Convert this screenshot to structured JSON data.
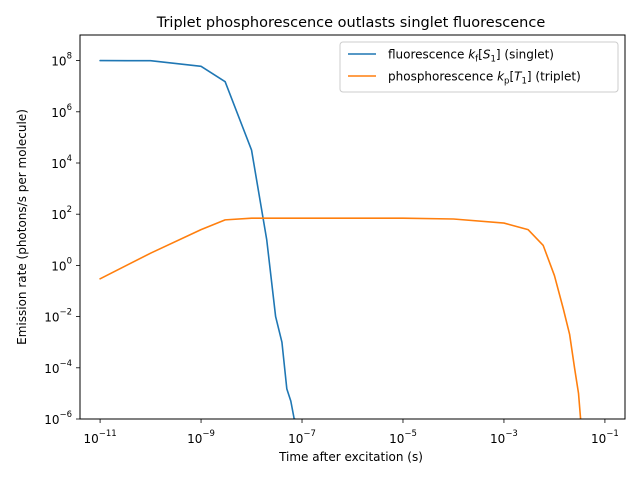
{
  "chart_data": {
    "type": "line",
    "title": "Triplet phosphorescence outlasts singlet fluorescence",
    "xlabel": "Time after excitation (s)",
    "ylabel": "Emission rate (photons/s per molecule)",
    "x_scale": "log",
    "y_scale": "log",
    "xlim": [
      4e-12,
      0.25
    ],
    "ylim": [
      1e-06,
      1000000000.0
    ],
    "x_ticks": [
      {
        "base": "10",
        "exp": "−11",
        "value": 1e-11
      },
      {
        "base": "10",
        "exp": "−9",
        "value": 1e-09
      },
      {
        "base": "10",
        "exp": "−7",
        "value": 1e-07
      },
      {
        "base": "10",
        "exp": "−5",
        "value": 1e-05
      },
      {
        "base": "10",
        "exp": "−3",
        "value": 0.001
      },
      {
        "base": "10",
        "exp": "−1",
        "value": 0.1
      }
    ],
    "y_ticks": [
      {
        "base": "10",
        "exp": "8",
        "value": 100000000.0
      },
      {
        "base": "10",
        "exp": "6",
        "value": 1000000.0
      },
      {
        "base": "10",
        "exp": "4",
        "value": 10000.0
      },
      {
        "base": "10",
        "exp": "2",
        "value": 100.0
      },
      {
        "base": "10",
        "exp": "0",
        "value": 1
      },
      {
        "base": "10",
        "exp": "−2",
        "value": 0.01
      },
      {
        "base": "10",
        "exp": "−4",
        "value": 0.0001
      },
      {
        "base": "10",
        "exp": "−6",
        "value": 1e-06
      }
    ],
    "grid": false,
    "legend_position": "top-right",
    "series": [
      {
        "name": "fluorescence k_f[S_1] (singlet)",
        "legend": {
          "pre": "fluorescence ",
          "k": "k",
          "ksub": "f",
          "var": "S",
          "varsub": "1",
          "post": " (singlet)"
        },
        "color": "#1f77b4",
        "x": [
          1e-11,
          1e-10,
          1e-09,
          3e-09,
          1e-08,
          2e-08,
          3e-08,
          4e-08,
          5e-08,
          6e-08,
          7e-08,
          7.3e-08
        ],
        "y": [
          100000000.0,
          99000000.0,
          60000000.0,
          15000000.0,
          32000.0,
          10.0,
          0.01,
          0.001,
          1.5e-05,
          5e-06,
          1e-06,
          1e-06
        ]
      },
      {
        "name": "phosphorescence k_p[T_1] (triplet)",
        "legend": {
          "pre": "phosphorescence ",
          "k": "k",
          "ksub": "p",
          "var": "T",
          "varsub": "1",
          "post": " (triplet)"
        },
        "color": "#ff7f0e",
        "x": [
          1e-11,
          1e-10,
          1e-09,
          3e-09,
          1e-08,
          1e-07,
          1e-06,
          1e-05,
          0.0001,
          0.001,
          0.003,
          0.006,
          0.01,
          0.015,
          0.02,
          0.025,
          0.03,
          0.033
        ],
        "y": [
          0.3,
          3,
          25,
          60,
          70,
          70,
          70,
          70,
          65,
          45,
          25,
          6,
          0.4,
          0.02,
          0.002,
          0.0001,
          1e-05,
          1e-06
        ]
      }
    ]
  }
}
